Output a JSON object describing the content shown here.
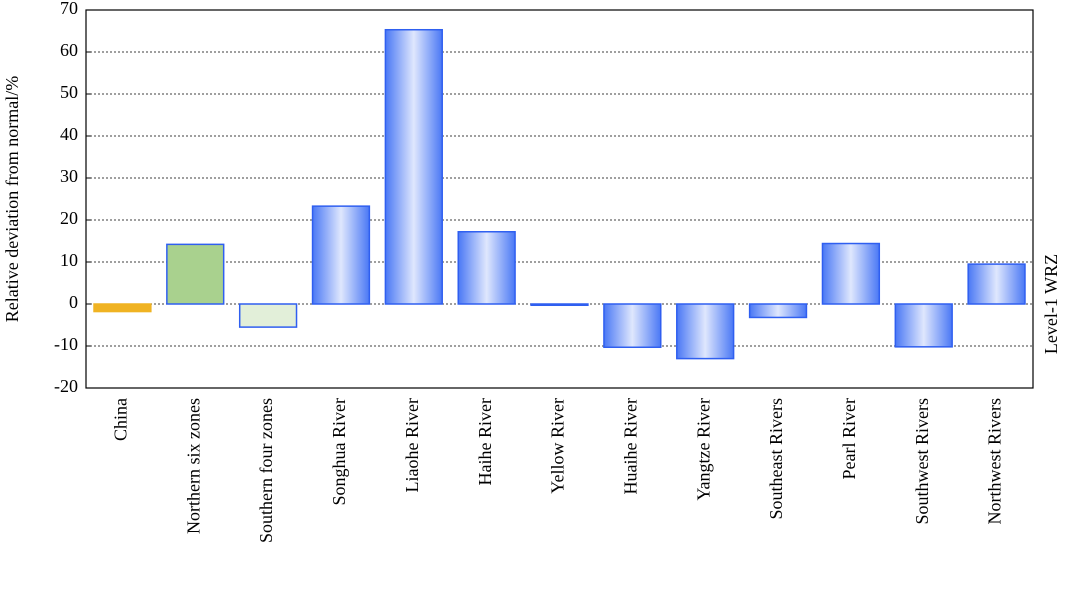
{
  "chart_data": {
    "type": "bar",
    "y_label": "Relative deviation from normal/%",
    "right_label": "Level-1 WRZ",
    "categories": [
      "China",
      "Northern six zones",
      "Southern four zones",
      "Songhua River",
      "Liaohe River",
      "Haihe River",
      "Yellow River",
      "Huaihe River",
      "Yangtze River",
      "Southeast Rivers",
      "Pearl River",
      "Southwest Rivers",
      "Northwest Rivers"
    ],
    "values": [
      -1.8,
      14.2,
      -5.5,
      23.3,
      65.3,
      17.2,
      -0.3,
      -10.3,
      -13,
      -3.2,
      14.4,
      -10.2,
      9.5
    ],
    "colors": [
      "#f0b323",
      "#a9d18e",
      "#e2efd9",
      "#4a78f5",
      "#4a78f5",
      "#4a78f5",
      "#4a78f5",
      "#4a78f5",
      "#4a78f5",
      "#4a78f5",
      "#4a78f5",
      "#4a78f5",
      "#4a78f5"
    ],
    "fill_styles": [
      "solid",
      "solid",
      "solid",
      "gradient",
      "gradient",
      "gradient",
      "gradient",
      "gradient",
      "gradient",
      "gradient",
      "gradient",
      "gradient",
      "gradient"
    ],
    "edge_color": "#2f5ff0",
    "ylim": [
      -20,
      70
    ],
    "yticks": [
      -20,
      -10,
      0,
      10,
      20,
      30,
      40,
      50,
      60,
      70
    ],
    "grid": true
  }
}
